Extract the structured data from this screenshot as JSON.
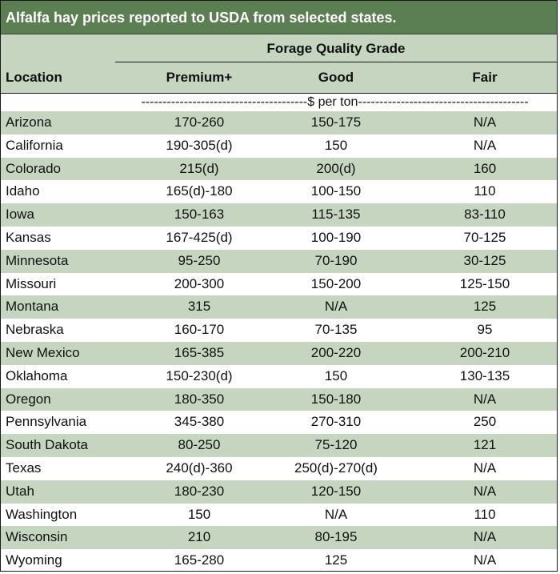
{
  "title": "Alfalfa hay prices reported to USDA from selected states.",
  "header": {
    "group_title": "Forage Quality Grade",
    "location_label": "Location",
    "premium_label": "Premium+",
    "good_label": "Good",
    "fair_label": "Fair",
    "units": "---------------------------------------$ per ton----------------------------------------"
  },
  "rows": [
    {
      "location": "Arizona",
      "premium": "170-260",
      "good": "150-175",
      "fair": "N/A"
    },
    {
      "location": "California",
      "premium": "190-305(d)",
      "good": "150",
      "fair": "N/A"
    },
    {
      "location": "Colorado",
      "premium": "215(d)",
      "good": "200(d)",
      "fair": "160"
    },
    {
      "location": "Idaho",
      "premium": "165(d)-180",
      "good": "100-150",
      "fair": "110"
    },
    {
      "location": "Iowa",
      "premium": "150-163",
      "good": "115-135",
      "fair": "83-110"
    },
    {
      "location": "Kansas",
      "premium": "167-425(d)",
      "good": "100-190",
      "fair": "70-125"
    },
    {
      "location": "Minnesota",
      "premium": "95-250",
      "good": "70-190",
      "fair": "30-125"
    },
    {
      "location": "Missouri",
      "premium": "200-300",
      "good": "150-200",
      "fair": "125-150"
    },
    {
      "location": "Montana",
      "premium": "315",
      "good": "N/A",
      "fair": "125"
    },
    {
      "location": "Nebraska",
      "premium": "160-170",
      "good": "70-135",
      "fair": "95"
    },
    {
      "location": "New Mexico",
      "premium": "165-385",
      "good": "200-220",
      "fair": "200-210"
    },
    {
      "location": "Oklahoma",
      "premium": "150-230(d)",
      "good": "150",
      "fair": "130-135"
    },
    {
      "location": "Oregon",
      "premium": "180-350",
      "good": "150-180",
      "fair": "N/A"
    },
    {
      "location": "Pennsylvania",
      "premium": "345-380",
      "good": "270-310",
      "fair": "250"
    },
    {
      "location": "South Dakota",
      "premium": "80-250",
      "good": "75-120",
      "fair": "121"
    },
    {
      "location": "Texas",
      "premium": "240(d)-360",
      "good": "250(d)-270(d)",
      "fair": "N/A"
    },
    {
      "location": "Utah",
      "premium": "180-230",
      "good": "120-150",
      "fair": "N/A"
    },
    {
      "location": "Washington",
      "premium": "150",
      "good": "N/A",
      "fair": "110"
    },
    {
      "location": "Wisconsin",
      "premium": "210",
      "good": "80-195",
      "fair": "N/A"
    },
    {
      "location": "Wyoming",
      "premium": "165-280",
      "good": "125",
      "fair": "N/A"
    }
  ],
  "colors": {
    "title_bg": "#5b7f53",
    "shade": "#c5d5c0"
  }
}
